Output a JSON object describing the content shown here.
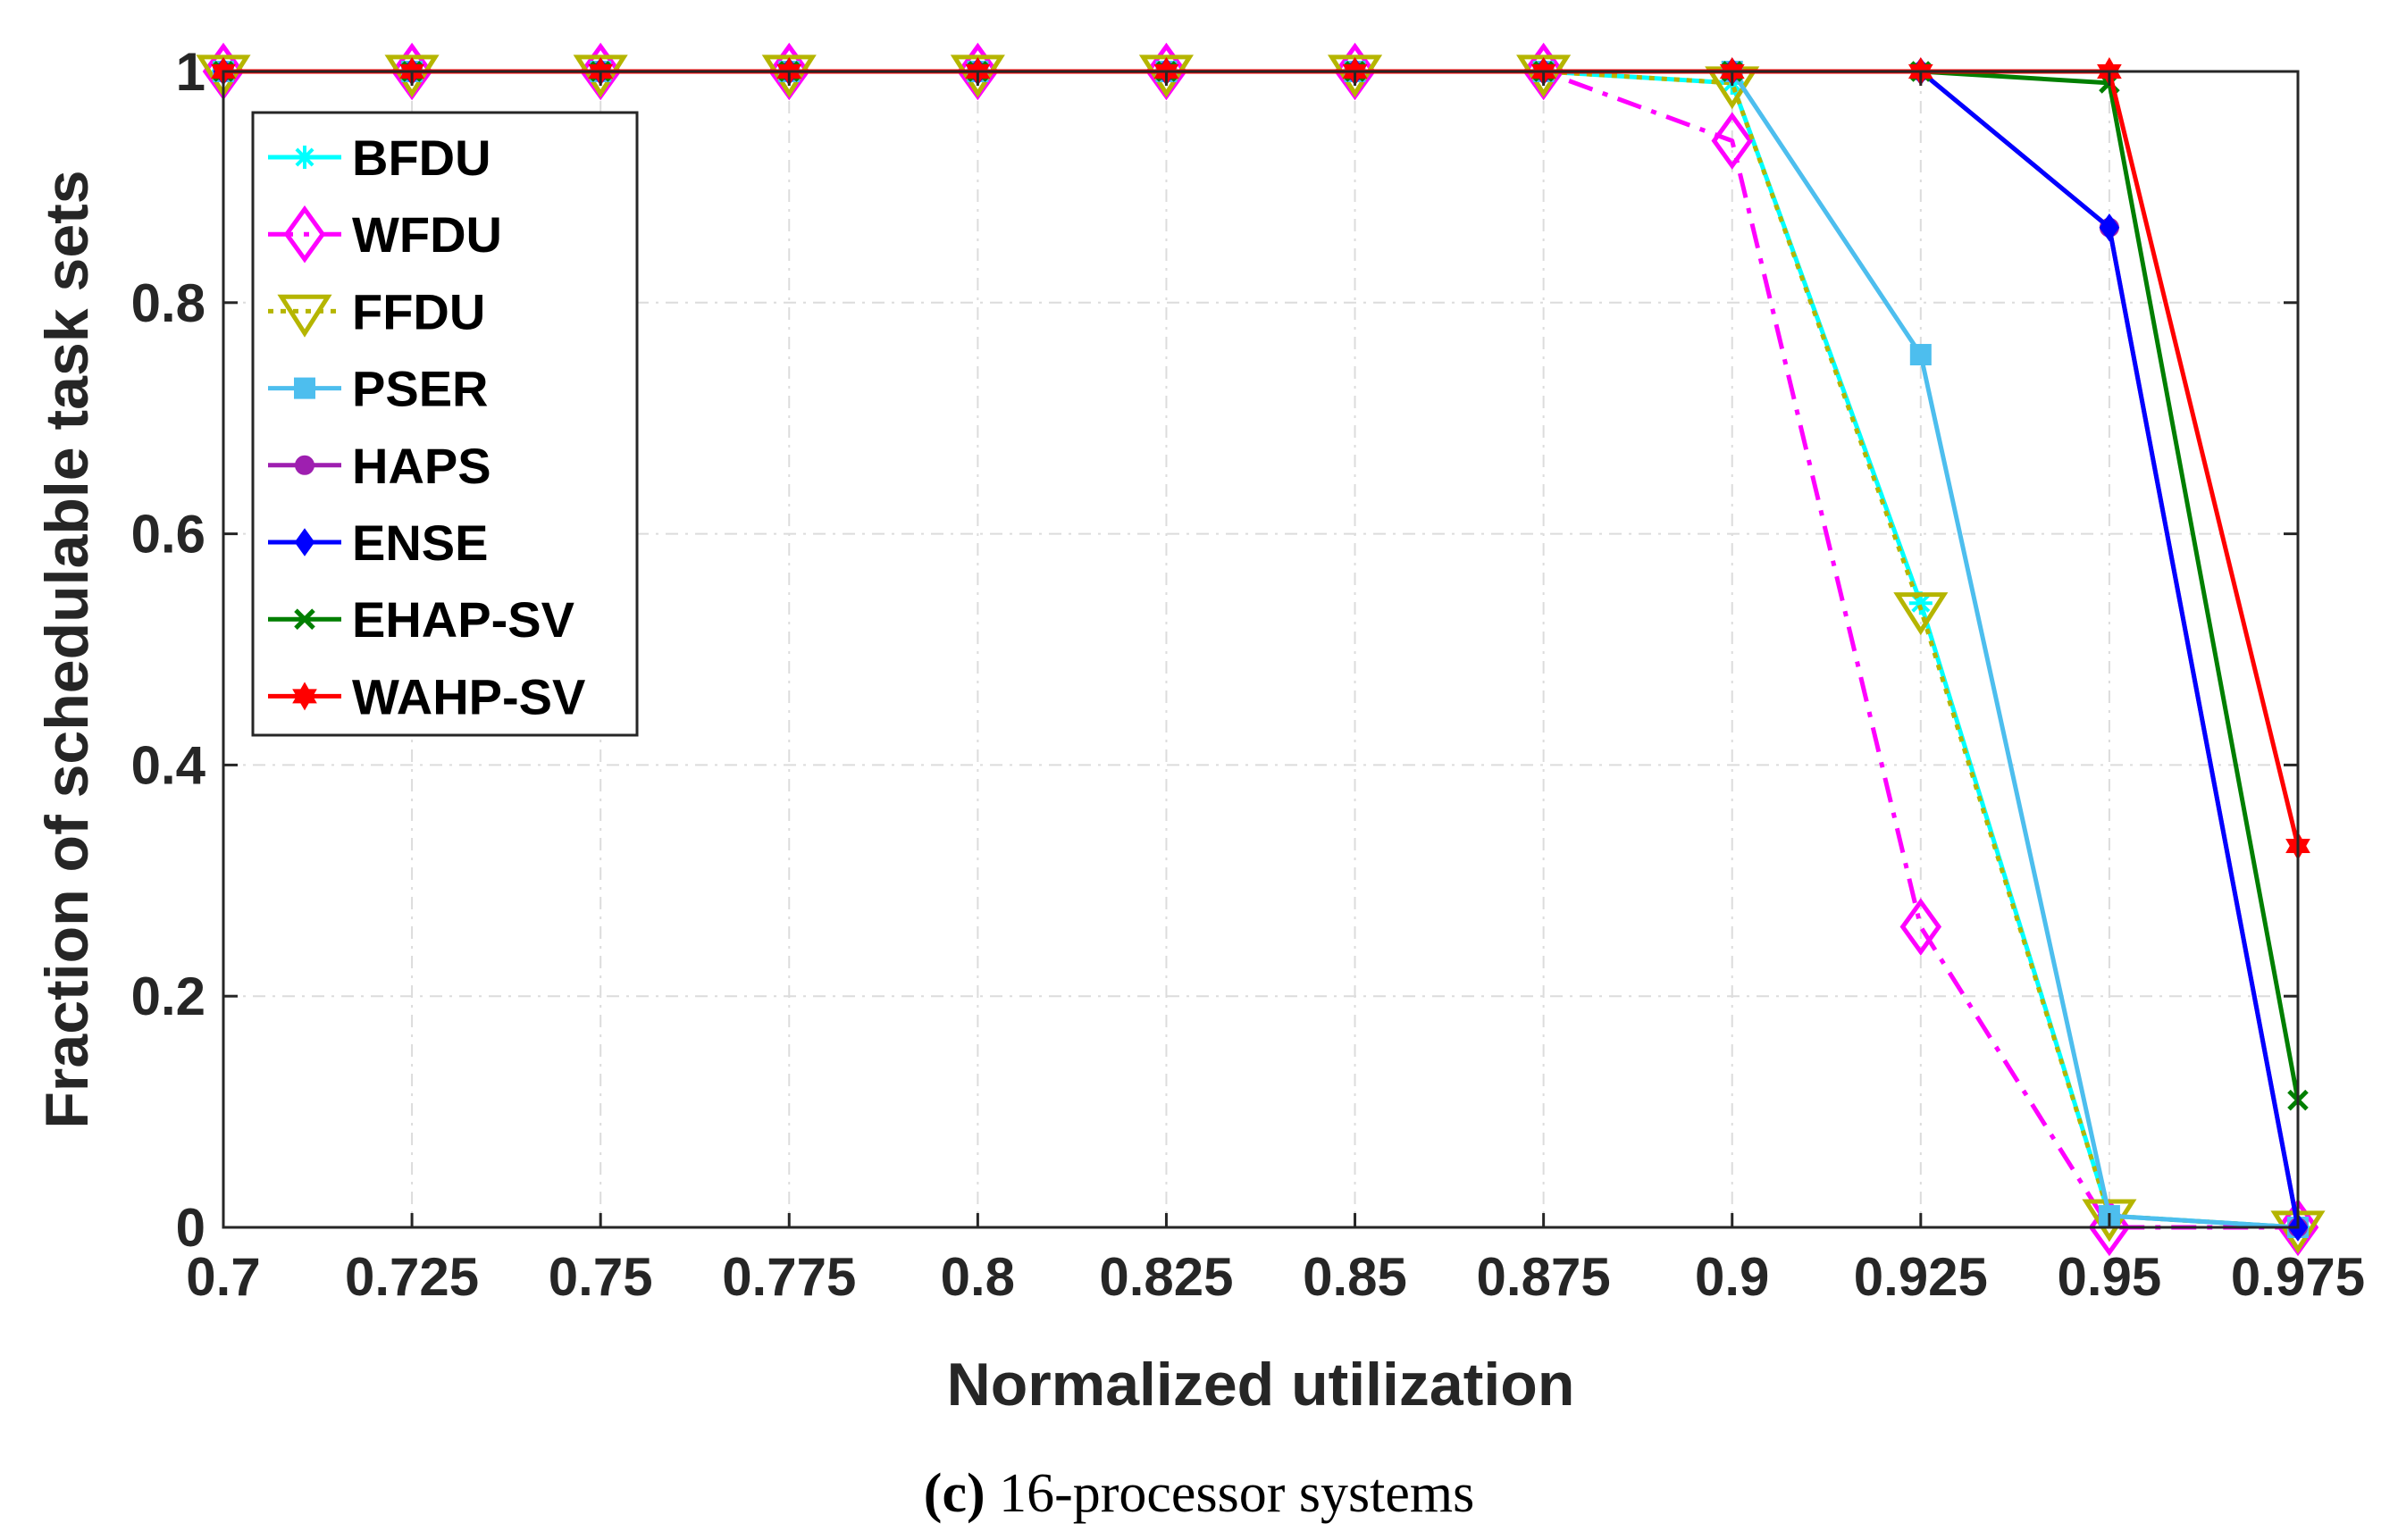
{
  "chart_data": {
    "type": "line",
    "title": "",
    "xlabel": "Normalized utilization",
    "ylabel": "Fraction of schedulable task sets",
    "x": [
      0.7,
      0.725,
      0.75,
      0.775,
      0.8,
      0.825,
      0.85,
      0.875,
      0.9,
      0.925,
      0.95,
      0.975
    ],
    "x_tick_labels": [
      "0.7",
      "0.725",
      "0.75",
      "0.775",
      "0.8",
      "0.825",
      "0.85",
      "0.875",
      "0.9",
      "0.925",
      "0.95",
      "0.975"
    ],
    "y_tick_labels": [
      "0",
      "0.2",
      "0.4",
      "0.6",
      "0.8",
      "1"
    ],
    "xlim": [
      0.7,
      0.975
    ],
    "ylim": [
      0,
      1
    ],
    "grid": true,
    "legend_position": "top-left",
    "series": [
      {
        "name": "BFDU",
        "color": "#00ffff",
        "marker": "asterisk",
        "dash": "solid",
        "values": [
          1,
          1,
          1,
          1,
          1,
          1,
          1,
          1,
          0.99,
          0.54,
          0.01,
          0.0
        ]
      },
      {
        "name": "WFDU",
        "color": "#ff00ff",
        "marker": "diamond",
        "dash": "dashdot",
        "values": [
          1,
          1,
          1,
          1,
          1,
          1,
          1,
          1,
          0.94,
          0.26,
          0.0,
          0.0
        ]
      },
      {
        "name": "FFDU",
        "color": "#b5b500",
        "marker": "triangle-down",
        "dash": "dotted",
        "values": [
          1,
          1,
          1,
          1,
          1,
          1,
          1,
          1,
          0.99,
          0.535,
          0.01,
          0.0
        ]
      },
      {
        "name": "PSER",
        "color": "#4dbeee",
        "marker": "square",
        "dash": "solid",
        "values": [
          1,
          1,
          1,
          1,
          1,
          1,
          1,
          1,
          1,
          0.755,
          0.01,
          0.0
        ]
      },
      {
        "name": "HAPS",
        "color": "#9e1fb0",
        "marker": "circle",
        "dash": "solid",
        "values": [
          1,
          1,
          1,
          1,
          1,
          1,
          1,
          1,
          1,
          1,
          0.865,
          0.0
        ]
      },
      {
        "name": "ENSE",
        "color": "#0000ff",
        "marker": "filled-diamond",
        "dash": "solid",
        "values": [
          1,
          1,
          1,
          1,
          1,
          1,
          1,
          1,
          1,
          1,
          0.865,
          0.0
        ]
      },
      {
        "name": "EHAP-SV",
        "color": "#007f00",
        "marker": "x",
        "dash": "solid",
        "values": [
          1,
          1,
          1,
          1,
          1,
          1,
          1,
          1,
          1,
          1,
          0.99,
          0.11
        ]
      },
      {
        "name": "WAHP-SV",
        "color": "#ff0000",
        "marker": "hexagram",
        "dash": "solid",
        "values": [
          1,
          1,
          1,
          1,
          1,
          1,
          1,
          1,
          1,
          1,
          1,
          0.33
        ]
      }
    ]
  },
  "caption": {
    "label": "(c)",
    "text": " 16-processor systems"
  }
}
